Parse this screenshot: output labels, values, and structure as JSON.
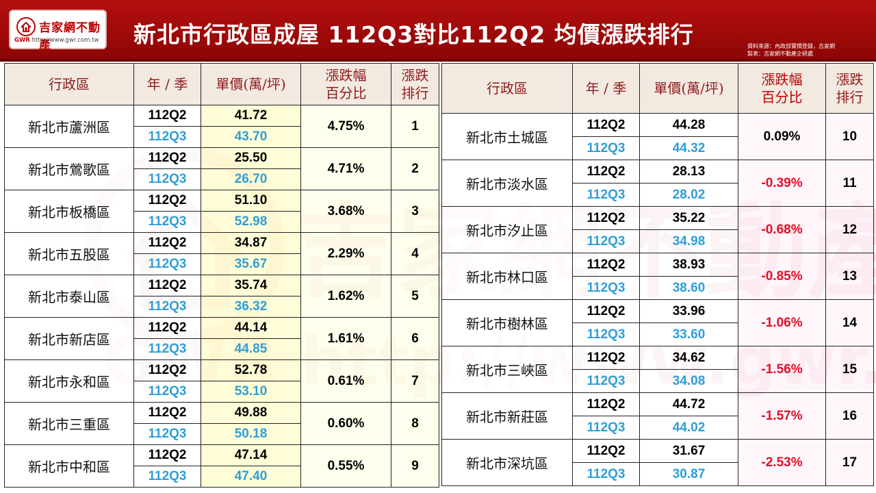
{
  "header": {
    "logo": {
      "name": "吉家網不動產",
      "brand_mark": "GWR",
      "url": "http://www.gwr.com.tw"
    },
    "title": "新北市行政區成屋 112Q3對比112Q2 均價漲跌排行",
    "source_line1": "資料來源：內政部實價登錄，吉家網",
    "source_line2": "製表：吉家網不動產企研處"
  },
  "colors": {
    "header_red": "#a80a0a",
    "q3_blue": "#2e9ed8",
    "negative_red": "#e0102a",
    "header_text": "#8e1b1b"
  },
  "table_headers": {
    "district": "行政區",
    "period": "年 / 季",
    "price": "單價(萬/坪)",
    "change_line1": "漲跌幅",
    "change_line2": "百分比",
    "rank_line1": "漲跌",
    "rank_line2": "排行"
  },
  "left_rows": [
    {
      "district": "新北市蘆洲區",
      "q2": "112Q2",
      "q2_price": "41.72",
      "q3": "112Q3",
      "q3_price": "43.70",
      "change": "4.75%",
      "rank": "1"
    },
    {
      "district": "新北市鶯歌區",
      "q2": "112Q2",
      "q2_price": "25.50",
      "q3": "112Q3",
      "q3_price": "26.70",
      "change": "4.71%",
      "rank": "2"
    },
    {
      "district": "新北市板橋區",
      "q2": "112Q2",
      "q2_price": "51.10",
      "q3": "112Q3",
      "q3_price": "52.98",
      "change": "3.68%",
      "rank": "3"
    },
    {
      "district": "新北市五股區",
      "q2": "112Q2",
      "q2_price": "34.87",
      "q3": "112Q3",
      "q3_price": "35.67",
      "change": "2.29%",
      "rank": "4"
    },
    {
      "district": "新北市泰山區",
      "q2": "112Q2",
      "q2_price": "35.74",
      "q3": "112Q3",
      "q3_price": "36.32",
      "change": "1.62%",
      "rank": "5"
    },
    {
      "district": "新北市新店區",
      "q2": "112Q2",
      "q2_price": "44.14",
      "q3": "112Q3",
      "q3_price": "44.85",
      "change": "1.61%",
      "rank": "6"
    },
    {
      "district": "新北市永和區",
      "q2": "112Q2",
      "q2_price": "52.78",
      "q3": "112Q3",
      "q3_price": "53.10",
      "change": "0.61%",
      "rank": "7"
    },
    {
      "district": "新北市三重區",
      "q2": "112Q2",
      "q2_price": "49.88",
      "q3": "112Q3",
      "q3_price": "50.18",
      "change": "0.60%",
      "rank": "8"
    },
    {
      "district": "新北市中和區",
      "q2": "112Q2",
      "q2_price": "47.14",
      "q3": "112Q3",
      "q3_price": "47.40",
      "change": "0.55%",
      "rank": "9"
    }
  ],
  "right_rows": [
    {
      "district": "新北市土城區",
      "q2": "112Q2",
      "q2_price": "44.28",
      "q3": "112Q3",
      "q3_price": "44.32",
      "change": "0.09%",
      "rank": "10"
    },
    {
      "district": "新北市淡水區",
      "q2": "112Q2",
      "q2_price": "28.13",
      "q3": "112Q3",
      "q3_price": "28.02",
      "change": "-0.39%",
      "rank": "11"
    },
    {
      "district": "新北市汐止區",
      "q2": "112Q2",
      "q2_price": "35.22",
      "q3": "112Q3",
      "q3_price": "34.98",
      "change": "-0.68%",
      "rank": "12"
    },
    {
      "district": "新北市林口區",
      "q2": "112Q2",
      "q2_price": "38.93",
      "q3": "112Q3",
      "q3_price": "38.60",
      "change": "-0.85%",
      "rank": "13"
    },
    {
      "district": "新北市樹林區",
      "q2": "112Q2",
      "q2_price": "33.96",
      "q3": "112Q3",
      "q3_price": "33.60",
      "change": "-1.06%",
      "rank": "14"
    },
    {
      "district": "新北市三峽區",
      "q2": "112Q2",
      "q2_price": "34.62",
      "q3": "112Q3",
      "q3_price": "34.08",
      "change": "-1.56%",
      "rank": "15"
    },
    {
      "district": "新北市新莊區",
      "q2": "112Q2",
      "q2_price": "44.72",
      "q3": "112Q3",
      "q3_price": "44.02",
      "change": "-1.57%",
      "rank": "16"
    },
    {
      "district": "新北市深坑區",
      "q2": "112Q2",
      "q2_price": "31.67",
      "q3": "112Q3",
      "q3_price": "30.87",
      "change": "-2.53%",
      "rank": "17"
    }
  ]
}
